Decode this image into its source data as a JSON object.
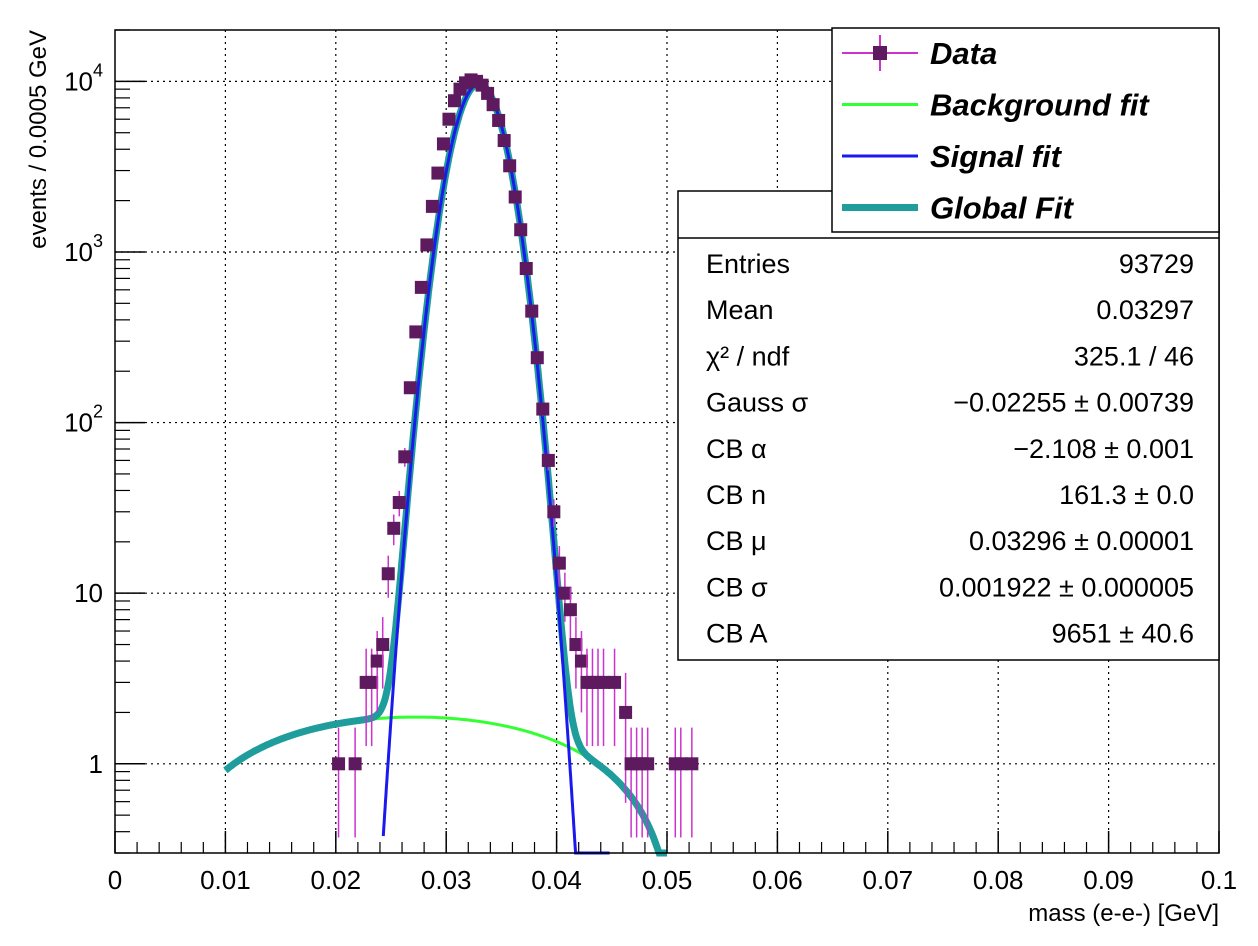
{
  "chart_data": {
    "type": "scatter",
    "title": "",
    "xlabel": "mass (e-e-) [GeV]",
    "ylabel": "events / 0.0005 GeV",
    "xlim": [
      0,
      0.1
    ],
    "ylim": [
      0.3,
      20000
    ],
    "y_scale": "log",
    "grid": true,
    "x_ticks": [
      "0",
      "0.01",
      "0.02",
      "0.03",
      "0.04",
      "0.05",
      "0.06",
      "0.07",
      "0.08",
      "0.09",
      "0.1"
    ],
    "y_ticks": [
      {
        "base": "10",
        "exp": "4",
        "value": 10000
      },
      {
        "base": "10",
        "exp": "3",
        "value": 1000
      },
      {
        "base": "10",
        "exp": "2",
        "value": 100
      },
      {
        "base": "10",
        "exp": "",
        "value": 10
      },
      {
        "base": "1",
        "exp": "",
        "value": 1
      }
    ],
    "legend": {
      "position": "top-right",
      "entries": [
        {
          "label": "Data",
          "color": "#cc33cc",
          "marker_color": "#5e1a5e",
          "kind": "marker"
        },
        {
          "label": "Background fit",
          "color": "#33ff33",
          "kind": "line"
        },
        {
          "label": "Signal fit",
          "color": "#1a1aee",
          "kind": "line"
        },
        {
          "label": "Global Fit",
          "color": "#1f9c9c",
          "kind": "thick-line"
        }
      ]
    },
    "stats": [
      {
        "name": "Entries",
        "value": "93729"
      },
      {
        "name": "Mean",
        "value": "0.03297"
      },
      {
        "name": "χ² / ndf",
        "value": "325.1 / 46"
      },
      {
        "name": "Gauss σ",
        "value": "−0.02255 ± 0.00739"
      },
      {
        "name": "CB α",
        "value": "−2.108 ± 0.001"
      },
      {
        "name": "CB n",
        "value": "161.3 ± 0.0"
      },
      {
        "name": "CB μ",
        "value": "0.03296 ± 0.00001"
      },
      {
        "name": "CB σ",
        "value": "0.001922 ± 0.000005"
      },
      {
        "name": "CB A",
        "value": "9651 ± 40.6"
      }
    ],
    "series": [
      {
        "name": "Data",
        "points": [
          [
            0.02025,
            1,
            0.63
          ],
          [
            0.02175,
            1,
            0.63
          ],
          [
            0.02275,
            3,
            1.73
          ],
          [
            0.02325,
            3,
            1.73
          ],
          [
            0.02375,
            4,
            2.0
          ],
          [
            0.02425,
            5,
            2.24
          ],
          [
            0.02475,
            13,
            3.6
          ],
          [
            0.02525,
            24,
            4.9
          ],
          [
            0.02575,
            34,
            5.8
          ],
          [
            0.02625,
            63,
            7.9
          ],
          [
            0.02675,
            160,
            12.6
          ],
          [
            0.02725,
            340,
            18.4
          ],
          [
            0.02775,
            620,
            25
          ],
          [
            0.02825,
            1100,
            33
          ],
          [
            0.02875,
            1850,
            43
          ],
          [
            0.02925,
            2900,
            54
          ],
          [
            0.02975,
            4300,
            66
          ],
          [
            0.03025,
            6000,
            77
          ],
          [
            0.03075,
            7700,
            88
          ],
          [
            0.03125,
            9000,
            95
          ],
          [
            0.03175,
            9800,
            99
          ],
          [
            0.03225,
            10200,
            101
          ],
          [
            0.03275,
            10000,
            100
          ],
          [
            0.03325,
            9500,
            97
          ],
          [
            0.03375,
            8500,
            92
          ],
          [
            0.03425,
            7300,
            85
          ],
          [
            0.03475,
            5900,
            77
          ],
          [
            0.03525,
            4500,
            67
          ],
          [
            0.03575,
            3200,
            57
          ],
          [
            0.03625,
            2100,
            46
          ],
          [
            0.03675,
            1350,
            37
          ],
          [
            0.03725,
            800,
            28
          ],
          [
            0.03775,
            450,
            21
          ],
          [
            0.03825,
            240,
            15.5
          ],
          [
            0.03875,
            120,
            11
          ],
          [
            0.03925,
            60,
            7.7
          ],
          [
            0.03975,
            30,
            5.5
          ],
          [
            0.04025,
            15,
            3.9
          ],
          [
            0.04075,
            10,
            3.2
          ],
          [
            0.04125,
            8,
            2.8
          ],
          [
            0.04175,
            5,
            2.24
          ],
          [
            0.04225,
            4,
            2.0
          ],
          [
            0.04275,
            3,
            1.73
          ],
          [
            0.04325,
            3,
            1.73
          ],
          [
            0.04375,
            3,
            1.73
          ],
          [
            0.04425,
            3,
            1.73
          ],
          [
            0.04525,
            3,
            1.73
          ],
          [
            0.04625,
            2,
            1.41
          ],
          [
            0.04675,
            1,
            0.63
          ],
          [
            0.04725,
            1,
            0.63
          ],
          [
            0.04775,
            1,
            0.63
          ],
          [
            0.04825,
            1,
            0.63
          ],
          [
            0.05075,
            1,
            0.63
          ],
          [
            0.05125,
            1,
            0.63
          ],
          [
            0.05225,
            1,
            0.63
          ]
        ]
      },
      {
        "name": "Background fit",
        "function": "pol2",
        "x_range": [
          0.01,
          0.05
        ],
        "params": [
          -0.53,
          176.97,
          -3250
        ]
      },
      {
        "name": "Signal fit",
        "function": "gauss",
        "x_range": [
          0.0243,
          0.0448
        ],
        "params": [
          9651,
          0.03296,
          0.001922
        ]
      },
      {
        "name": "Global Fit",
        "function": "gauss+pol2",
        "x_range": [
          0.01,
          0.05
        ]
      }
    ]
  }
}
